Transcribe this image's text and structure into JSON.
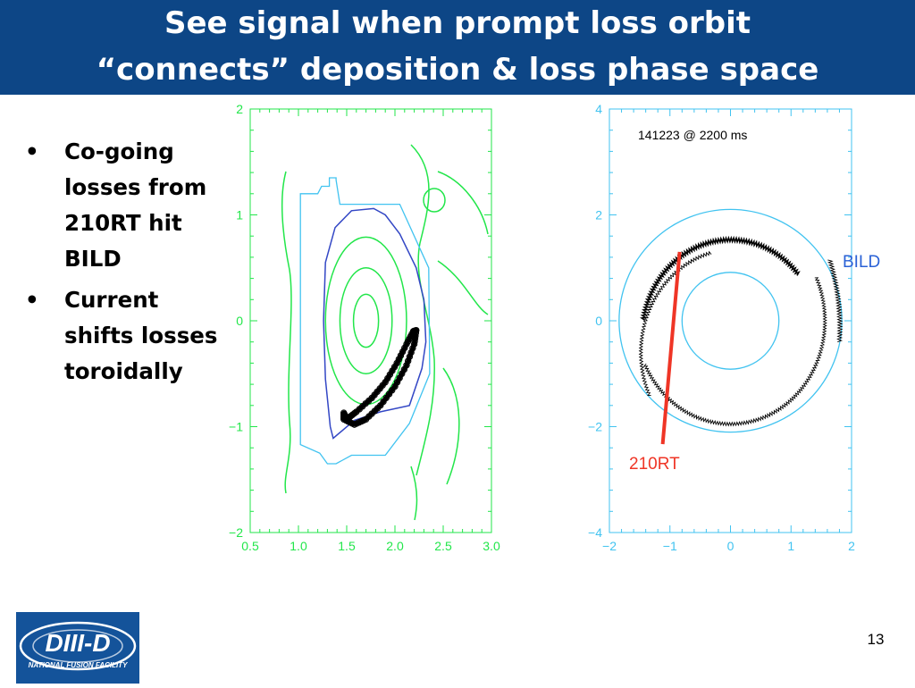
{
  "slide": {
    "title_lines": [
      "See signal when prompt loss orbit",
      "“connects” deposition & loss phase space"
    ],
    "bullets": [
      "Co-going losses from 210RT hit BILD",
      "Current shifts losses toroidally"
    ],
    "page_number": "13",
    "logo": {
      "main_text": "DIII-D",
      "sub_text": "NATIONAL FUSION FACILITY"
    }
  },
  "colors": {
    "title_bg": "#0d4686",
    "green": "#22e64a",
    "cyan": "#41c3f0",
    "blue": "#3347c5",
    "red": "#ef3526",
    "black": "#000000"
  },
  "chart_data": [
    {
      "type": "line",
      "description_kind": "poloidal cross-section",
      "xlim": [
        0.5,
        3.0
      ],
      "ylim": [
        -2,
        2
      ],
      "xticks": [
        "0.5",
        "1.0",
        "1.5",
        "2.0",
        "2.5",
        "3.0"
      ],
      "yticks": [
        "−2",
        "−1",
        "0",
        "1",
        "2"
      ],
      "flux_surfaces": [
        {
          "center": [
            1.7,
            0.0
          ],
          "rx": 0.13,
          "ry": 0.25
        },
        {
          "center": [
            1.7,
            0.0
          ],
          "rx": 0.27,
          "ry": 0.5
        },
        {
          "center": [
            1.7,
            0.0
          ],
          "rx": 0.42,
          "ry": 0.79
        }
      ],
      "separatrix": [
        [
          1.78,
          1.06
        ],
        [
          1.55,
          1.04
        ],
        [
          1.38,
          0.88
        ],
        [
          1.28,
          0.55
        ],
        [
          1.26,
          0.0
        ],
        [
          1.28,
          -0.55
        ],
        [
          1.33,
          -1.0
        ],
        [
          1.36,
          -1.11
        ],
        [
          1.58,
          -0.94
        ],
        [
          1.85,
          -0.86
        ],
        [
          2.15,
          -0.8
        ],
        [
          2.28,
          -0.45
        ],
        [
          2.32,
          -0.2
        ],
        [
          2.3,
          0.2
        ],
        [
          2.22,
          0.5
        ],
        [
          2.05,
          0.82
        ],
        [
          1.9,
          1.0
        ],
        [
          1.78,
          1.06
        ]
      ],
      "wall": [
        [
          1.02,
          -1.1
        ],
        [
          1.02,
          1.2
        ],
        [
          1.2,
          1.2
        ],
        [
          1.24,
          1.27
        ],
        [
          1.32,
          1.27
        ],
        [
          1.32,
          1.35
        ],
        [
          1.39,
          1.35
        ],
        [
          1.39,
          1.33
        ],
        [
          1.43,
          1.1
        ],
        [
          2.05,
          1.1
        ],
        [
          2.35,
          0.5
        ],
        [
          2.36,
          -0.5
        ],
        [
          2.15,
          -0.97
        ],
        [
          1.9,
          -1.27
        ],
        [
          1.55,
          -1.27
        ],
        [
          1.39,
          -1.35
        ],
        [
          1.3,
          -1.35
        ],
        [
          1.22,
          -1.25
        ],
        [
          1.02,
          -1.17
        ],
        [
          1.02,
          -1.1
        ]
      ],
      "prompt_loss_orbit": [
        [
          1.47,
          -0.87
        ],
        [
          1.5,
          -0.93
        ],
        [
          1.6,
          -0.86
        ],
        [
          1.76,
          -0.73
        ],
        [
          1.9,
          -0.58
        ],
        [
          2.02,
          -0.4
        ],
        [
          2.12,
          -0.22
        ],
        [
          2.19,
          -0.1
        ],
        [
          2.22,
          -0.09
        ],
        [
          2.2,
          -0.22
        ],
        [
          2.12,
          -0.42
        ],
        [
          2.0,
          -0.62
        ],
        [
          1.85,
          -0.8
        ],
        [
          1.7,
          -0.93
        ],
        [
          1.58,
          -0.98
        ],
        [
          1.47,
          -0.93
        ],
        [
          1.47,
          -0.87
        ]
      ]
    },
    {
      "type": "line",
      "description_kind": "top-down orbit view",
      "annotation": "141223 @ 2200 ms",
      "xlim": [
        -2.5,
        2.5
      ],
      "ylim": [
        -4,
        4
      ],
      "xticks": [
        "−2",
        "−1",
        "0",
        "1",
        "2"
      ],
      "yticks": [
        "−4",
        "−2",
        "0",
        "2",
        "4"
      ],
      "circles": [
        {
          "center": [
            0,
            0
          ],
          "r": 1.0
        },
        {
          "center": [
            0,
            0
          ],
          "r": 2.3
        }
      ],
      "detector_label": "BILD",
      "detector_arc": [
        [
          2.05,
          1.15
        ],
        [
          2.3,
          0.4
        ],
        [
          2.25,
          -0.4
        ]
      ],
      "orbit_arc": {
        "center": [
          0.0,
          -0.3
        ],
        "r": 1.83,
        "start_deg": 40,
        "end_deg": 170
      },
      "orbit_ring": {
        "center": [
          0.0,
          0.0
        ],
        "r": 1.95,
        "start_deg": 25,
        "end_deg": 205
      },
      "beam_label": "210RT",
      "beam_line": [
        [
          -1.05,
          1.3
        ],
        [
          -1.4,
          -2.33
        ]
      ]
    }
  ]
}
